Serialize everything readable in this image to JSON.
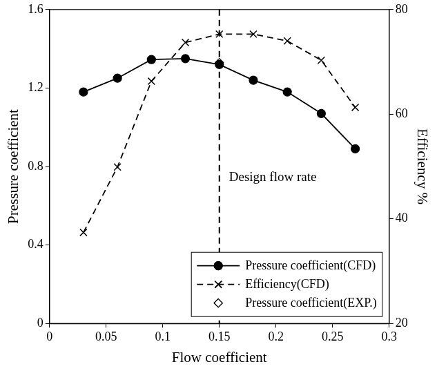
{
  "chart_data": {
    "type": "line",
    "x_label": "Flow coefficient",
    "y_label": "Pressure coefficient",
    "y2_label": "Efficiency %",
    "x": [
      0.03,
      0.06,
      0.09,
      0.12,
      0.15,
      0.18,
      0.21,
      0.24,
      0.27
    ],
    "series": [
      {
        "name": "Pressure coefficient(CFD)",
        "color": "#000000",
        "marker": "circle",
        "line_style": "solid",
        "values": [
          1.18,
          1.25,
          1.345,
          1.35,
          1.32,
          1.24,
          1.18,
          1.07,
          0.89
        ]
      },
      {
        "name": "Efficiency(CFD)",
        "color": "#000000",
        "marker": "x",
        "line_style": "dashed",
        "axis": "y2",
        "values": [
          37.4,
          49.9,
          66.3,
          73.7,
          75.3,
          75.3,
          74.0,
          70.3,
          61.3
        ]
      },
      {
        "name": "Pressure coefficient(EXP.)",
        "color": "#000000",
        "marker": "open_diamond",
        "line_style": "none",
        "x": [
          0.15
        ],
        "values": [
          1.33
        ]
      }
    ],
    "xlim": [
      0,
      0.3
    ],
    "xticks": [
      0,
      0.05,
      0.1,
      0.15,
      0.2,
      0.25,
      0.3
    ],
    "ylim": [
      0,
      1.6
    ],
    "yticks": [
      0,
      0.4,
      0.8,
      1.2,
      1.6
    ],
    "y2lim": [
      20,
      80
    ],
    "y2ticks": [
      20,
      40,
      60,
      80
    ],
    "annotations": [
      {
        "x": 0.15,
        "text": "Design flow rate",
        "line_style": "dashed"
      }
    ],
    "legend": "lower right",
    "grid": false
  }
}
